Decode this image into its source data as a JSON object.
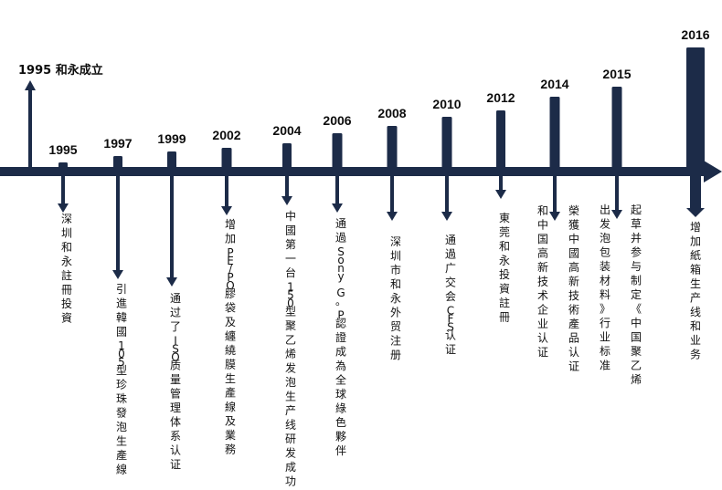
{
  "colors": {
    "navy": "#1c2b48",
    "text": "#111111"
  },
  "founded": {
    "label": "1995 和永成立"
  },
  "events": [
    {
      "year": "1995",
      "lines": [
        "深圳和永註冊投資"
      ]
    },
    {
      "year": "1997",
      "lines": [
        "引進韓國105型珍珠發泡生產線"
      ]
    },
    {
      "year": "1999",
      "lines": [
        "通过了ISO质量管理体系认证"
      ]
    },
    {
      "year": "2002",
      "lines": [
        "增加PE/PO膠袋及纏繞膜生產線及業務"
      ]
    },
    {
      "year": "2004",
      "lines": [
        "中國第一台150型聚乙烯发泡生产线研发成功"
      ]
    },
    {
      "year": "2006",
      "lines": [
        "通過Sony G。P認證成為全球綠色夥伴"
      ]
    },
    {
      "year": "2008",
      "lines": [
        "深圳市和永外贸注册"
      ]
    },
    {
      "year": "2010",
      "lines": [
        "通過广交会CFS认证"
      ]
    },
    {
      "year": "2012",
      "lines": [
        "東莞和永投資註冊"
      ]
    },
    {
      "year": "2014",
      "lines": [
        "榮獲中國高新技術產品认证",
        "和中国高新技术企业认证"
      ]
    },
    {
      "year": "2015",
      "lines": [
        "起草并参与制定《中国聚乙烯",
        "出发泡包装材料》行业标准"
      ]
    },
    {
      "year": "2016",
      "lines": [
        "增加紙箱生产线和业务"
      ]
    }
  ]
}
